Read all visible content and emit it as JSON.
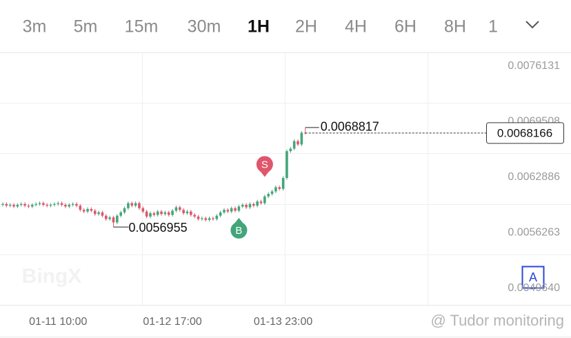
{
  "tabs": [
    "3m",
    "5m",
    "15m",
    "30m",
    "1H",
    "2H",
    "4H",
    "6H",
    "8H",
    "1"
  ],
  "active_tab": 4,
  "chart_data": {
    "type": "candlestick",
    "categories": [
      null,
      null,
      null,
      null,
      null,
      null,
      null,
      null,
      null,
      null,
      null,
      null,
      null,
      null,
      null,
      "01-11 10:00",
      null,
      null,
      null,
      null,
      null,
      null,
      null,
      null,
      null,
      null,
      null,
      null,
      null,
      null,
      null,
      null,
      null,
      null,
      null,
      null,
      null,
      null,
      null,
      null,
      null,
      null,
      null,
      null,
      null,
      null,
      "01-12 17:00",
      null,
      null,
      null,
      null,
      null,
      null,
      null,
      null,
      null,
      null,
      null,
      null,
      null,
      null,
      null,
      null,
      null,
      null,
      null,
      null,
      null,
      null,
      null,
      null,
      null,
      null,
      null,
      null,
      null,
      "01-13 23:00",
      null,
      null,
      null,
      null,
      null,
      null
    ],
    "open": [
      0.00596,
      0.00597,
      0.00595,
      0.00596,
      0.00594,
      0.00596,
      0.00597,
      0.00595,
      0.00594,
      0.00596,
      0.00597,
      0.00598,
      0.00596,
      0.00595,
      0.00596,
      0.00597,
      0.00598,
      0.00596,
      0.00594,
      0.00596,
      0.00597,
      0.00595,
      0.0059,
      0.00588,
      0.00591,
      0.00589,
      0.00585,
      0.00587,
      0.00583,
      0.00579,
      0.00581,
      0.00575,
      0.00583,
      0.00587,
      0.00592,
      0.00598,
      0.00595,
      0.00598,
      0.00592,
      0.00588,
      0.00582,
      0.00586,
      0.00584,
      0.00588,
      0.00585,
      0.00587,
      0.00584,
      0.00589,
      0.00593,
      0.0059,
      0.00586,
      0.00588,
      0.00584,
      0.00582,
      0.00579,
      0.0058,
      0.00578,
      0.0058,
      0.00579,
      0.00583,
      0.00587,
      0.0059,
      0.00588,
      0.00592,
      0.00589,
      0.00594,
      0.00596,
      0.00593,
      0.00597,
      0.00595,
      0.006,
      0.00598,
      0.00606,
      0.00609,
      0.00612,
      0.00617,
      0.00615,
      0.00628,
      0.0066,
      0.00663,
      0.00672,
      0.00668,
      0.00682
    ],
    "high": [
      0.00599,
      0.00599,
      0.00598,
      0.00598,
      0.00598,
      0.00599,
      0.00599,
      0.00597,
      0.00598,
      0.00599,
      0.006,
      0.006,
      0.00598,
      0.00598,
      0.00599,
      0.006,
      0.006,
      0.00598,
      0.00598,
      0.00599,
      0.00599,
      0.00597,
      0.00592,
      0.00593,
      0.00593,
      0.00591,
      0.00589,
      0.00589,
      0.00585,
      0.00583,
      0.00583,
      0.00585,
      0.00589,
      0.00594,
      0.006,
      0.006,
      0.006,
      0.006,
      0.00594,
      0.0059,
      0.00588,
      0.00588,
      0.0059,
      0.0059,
      0.00589,
      0.00589,
      0.00591,
      0.00595,
      0.00595,
      0.00592,
      0.0059,
      0.0059,
      0.00586,
      0.00584,
      0.00582,
      0.00582,
      0.00582,
      0.00582,
      0.00585,
      0.00589,
      0.00592,
      0.00592,
      0.00594,
      0.00594,
      0.00596,
      0.00598,
      0.00598,
      0.00599,
      0.00599,
      0.00602,
      0.00602,
      0.00608,
      0.00611,
      0.00614,
      0.00619,
      0.00619,
      0.0063,
      0.00662,
      0.00665,
      0.00674,
      0.00674,
      0.00684,
      0.0068817
    ],
    "low": [
      0.00594,
      0.00593,
      0.00593,
      0.00592,
      0.00592,
      0.00594,
      0.00593,
      0.00592,
      0.00592,
      0.00594,
      0.00595,
      0.00594,
      0.00593,
      0.00593,
      0.00594,
      0.00595,
      0.00594,
      0.00592,
      0.00592,
      0.00594,
      0.00593,
      0.00588,
      0.00586,
      0.00586,
      0.00587,
      0.00583,
      0.00583,
      0.00581,
      0.00577,
      0.00577,
      0.0056955,
      0.00573,
      0.00581,
      0.00585,
      0.0059,
      0.00593,
      0.00593,
      0.0059,
      0.00586,
      0.0058,
      0.0058,
      0.00582,
      0.00582,
      0.00583,
      0.00583,
      0.00582,
      0.00582,
      0.00587,
      0.00588,
      0.00584,
      0.00584,
      0.00582,
      0.0058,
      0.00577,
      0.00577,
      0.00576,
      0.00576,
      0.00577,
      0.00577,
      0.00581,
      0.00585,
      0.00586,
      0.00586,
      0.00587,
      0.00587,
      0.00592,
      0.00591,
      0.00591,
      0.00593,
      0.00593,
      0.00596,
      0.00596,
      0.00604,
      0.00607,
      0.0061,
      0.00613,
      0.00613,
      0.00626,
      0.00658,
      0.00661,
      0.00666,
      0.00666,
      0.0068
    ],
    "close": [
      0.00597,
      0.00595,
      0.00596,
      0.00594,
      0.00596,
      0.00597,
      0.00595,
      0.00594,
      0.00596,
      0.00597,
      0.00598,
      0.00596,
      0.00595,
      0.00596,
      0.00597,
      0.00598,
      0.00596,
      0.00594,
      0.00596,
      0.00597,
      0.00595,
      0.0059,
      0.00588,
      0.00591,
      0.00589,
      0.00585,
      0.00587,
      0.00583,
      0.00579,
      0.00581,
      0.00575,
      0.00583,
      0.00587,
      0.00592,
      0.00598,
      0.00595,
      0.00598,
      0.00592,
      0.00588,
      0.00582,
      0.00586,
      0.00584,
      0.00588,
      0.00585,
      0.00587,
      0.00584,
      0.00589,
      0.00593,
      0.0059,
      0.00586,
      0.00588,
      0.00584,
      0.00582,
      0.00579,
      0.0058,
      0.00578,
      0.0058,
      0.00579,
      0.00583,
      0.00587,
      0.0059,
      0.00588,
      0.00592,
      0.00589,
      0.00594,
      0.00596,
      0.00593,
      0.00597,
      0.00595,
      0.006,
      0.00598,
      0.00606,
      0.00609,
      0.00612,
      0.00617,
      0.00615,
      0.00628,
      0.0066,
      0.00663,
      0.00672,
      0.00668,
      0.00682,
      0.0068166
    ],
    "up_color": "#43a57a",
    "down_color": "#e0566a",
    "ylim": [
      0.0047664,
      0.0077777
    ],
    "yticks": [
      0.0076131,
      0.0069508,
      0.0062886,
      0.0056263,
      {
        "value": 0.004964,
        "label": "0.0049640"
      }
    ],
    "last_price": 0.0068166,
    "high_label": 0.0068817,
    "low_label": 0.0056955,
    "markers": [
      {
        "label": "S",
        "color": "#e0566a",
        "index": 71,
        "side": "above"
      },
      {
        "label": "B",
        "color": "#43a57a",
        "index": 64,
        "side": "below"
      }
    ],
    "watermark": "BingX",
    "indicator_button": "A"
  },
  "credit": "@ Tudor monitoring"
}
